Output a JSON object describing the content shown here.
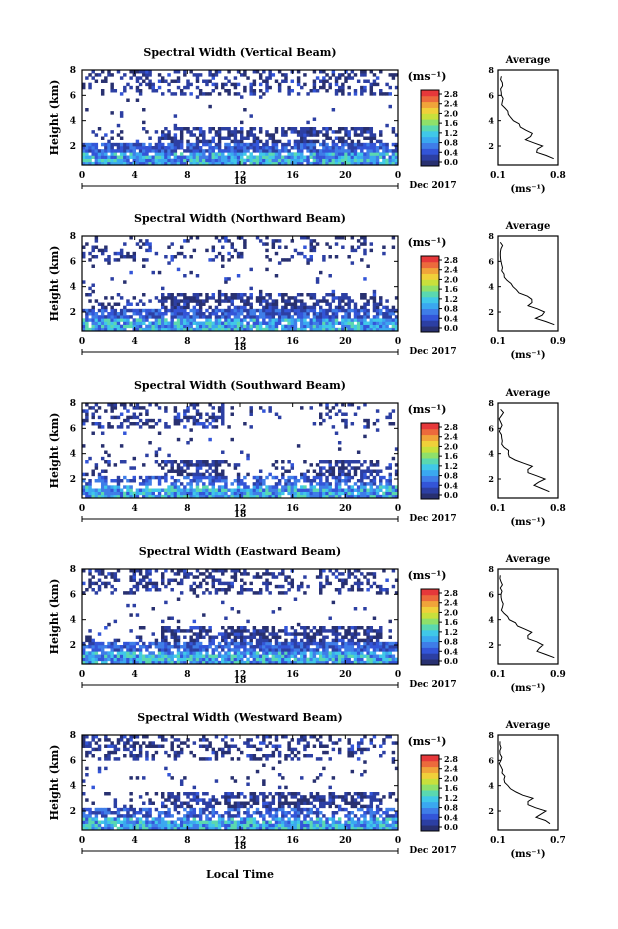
{
  "date_label": "Dec 2017",
  "day_label": "18",
  "xlabel": "Local Time",
  "ylabel": "Height (km)",
  "colorbar": {
    "unit_label": "(ms⁻¹)",
    "ticks": [
      "0.0",
      "0.4",
      "0.8",
      "1.2",
      "1.6",
      "2.0",
      "2.4",
      "2.8"
    ],
    "colors": [
      "#283070",
      "#2c3fa3",
      "#3355d8",
      "#3f7de8",
      "#3aa8f0",
      "#40c8e8",
      "#5ad8b0",
      "#8fe06a",
      "#c8e03c",
      "#f0d03a",
      "#f0a43a",
      "#ec6a3c",
      "#e6383a"
    ]
  },
  "average_panel": {
    "title": "Average",
    "xlabel": "(ms⁻¹)",
    "yticks": [
      "2",
      "4",
      "6",
      "8"
    ]
  },
  "chart_data": [
    {
      "type": "heatmap",
      "title": "Spectral Width (Vertical Beam)",
      "xlabel": "",
      "ylabel": "Height (km)",
      "xlim": [
        0,
        24
      ],
      "ylim": [
        0.5,
        8
      ],
      "xticks": [
        "0",
        "4",
        "8",
        "12",
        "16",
        "20",
        "0"
      ],
      "yticks": [
        "2",
        "4",
        "6",
        "8"
      ],
      "colorbar_range": [
        0.0,
        2.8
      ],
      "average_profile": {
        "xlim": [
          0.1,
          0.8
        ],
        "xticks": [
          "0.1",
          "0.8"
        ],
        "height": [
          1.0,
          1.5,
          2.0,
          2.5,
          3.0,
          3.5,
          4.0,
          4.5,
          5.0,
          5.5,
          6.0,
          6.5,
          7.0,
          7.5
        ],
        "value": [
          0.75,
          0.55,
          0.62,
          0.42,
          0.5,
          0.36,
          0.28,
          0.22,
          0.18,
          0.15,
          0.14,
          0.13,
          0.15,
          0.14
        ]
      }
    },
    {
      "type": "heatmap",
      "title": "Spectral Width (Northward Beam)",
      "xlabel": "",
      "ylabel": "Height (km)",
      "xlim": [
        0,
        24
      ],
      "ylim": [
        0.5,
        8
      ],
      "xticks": [
        "0",
        "4",
        "8",
        "12",
        "16",
        "20",
        "0"
      ],
      "yticks": [
        "2",
        "4",
        "6",
        "8"
      ],
      "colorbar_range": [
        0.0,
        2.8
      ],
      "average_profile": {
        "xlim": [
          0.1,
          0.9
        ],
        "xticks": [
          "0.1",
          "0.9"
        ],
        "height": [
          1.0,
          1.5,
          2.0,
          2.5,
          3.0,
          3.5,
          4.0,
          4.5,
          5.0,
          5.5,
          6.0,
          6.5,
          7.0,
          7.5
        ],
        "value": [
          0.85,
          0.6,
          0.72,
          0.5,
          0.55,
          0.38,
          0.3,
          0.22,
          0.18,
          0.16,
          0.14,
          0.13,
          0.14,
          0.13
        ]
      }
    },
    {
      "type": "heatmap",
      "title": "Spectral Width (Southward Beam)",
      "xlabel": "",
      "ylabel": "Height (km)",
      "xlim": [
        0,
        24
      ],
      "ylim": [
        0.5,
        8
      ],
      "xticks": [
        "0",
        "4",
        "8",
        "12",
        "16",
        "20",
        "0"
      ],
      "yticks": [
        "2",
        "4",
        "6",
        "8"
      ],
      "colorbar_range": [
        0.0,
        2.8
      ],
      "average_profile": {
        "xlim": [
          0.1,
          0.8
        ],
        "xticks": [
          "0.1",
          "0.8"
        ],
        "height": [
          1.0,
          1.5,
          2.0,
          2.5,
          3.0,
          3.5,
          4.0,
          4.5,
          5.0,
          5.5,
          6.0,
          6.5,
          7.0,
          7.5
        ],
        "value": [
          0.7,
          0.52,
          0.65,
          0.45,
          0.5,
          0.3,
          0.22,
          0.17,
          0.15,
          0.14,
          0.13,
          0.13,
          0.14,
          0.13
        ]
      }
    },
    {
      "type": "heatmap",
      "title": "Spectral Width (Eastward Beam)",
      "xlabel": "",
      "ylabel": "Height (km)",
      "xlim": [
        0,
        24
      ],
      "ylim": [
        0.5,
        8
      ],
      "xticks": [
        "0",
        "4",
        "8",
        "12",
        "16",
        "20",
        "0"
      ],
      "yticks": [
        "2",
        "4",
        "6",
        "8"
      ],
      "colorbar_range": [
        0.0,
        2.8
      ],
      "average_profile": {
        "xlim": [
          0.1,
          0.9
        ],
        "xticks": [
          "0.1",
          "0.9"
        ],
        "height": [
          1.0,
          1.5,
          2.0,
          2.5,
          3.0,
          3.5,
          4.0,
          4.5,
          5.0,
          5.5,
          6.0,
          6.5,
          7.0,
          7.5
        ],
        "value": [
          0.85,
          0.62,
          0.7,
          0.5,
          0.55,
          0.36,
          0.25,
          0.18,
          0.16,
          0.15,
          0.14,
          0.13,
          0.14,
          0.13
        ]
      }
    },
    {
      "type": "heatmap",
      "title": "Spectral Width (Westward Beam)",
      "xlabel": "Local Time",
      "ylabel": "Height (km)",
      "xlim": [
        0,
        24
      ],
      "ylim": [
        0.5,
        8
      ],
      "xticks": [
        "0",
        "4",
        "8",
        "12",
        "16",
        "20",
        "0"
      ],
      "yticks": [
        "2",
        "4",
        "6",
        "8"
      ],
      "colorbar_range": [
        0.0,
        2.8
      ],
      "average_profile": {
        "xlim": [
          0.1,
          0.7
        ],
        "xticks": [
          "0.1",
          "0.7"
        ],
        "height": [
          1.0,
          1.5,
          2.0,
          2.5,
          3.0,
          3.5,
          4.0,
          4.5,
          5.0,
          5.5,
          6.0,
          6.5,
          7.0,
          7.5
        ],
        "value": [
          0.62,
          0.48,
          0.58,
          0.4,
          0.45,
          0.28,
          0.2,
          0.16,
          0.14,
          0.13,
          0.13,
          0.12,
          0.13,
          0.12
        ]
      }
    }
  ]
}
